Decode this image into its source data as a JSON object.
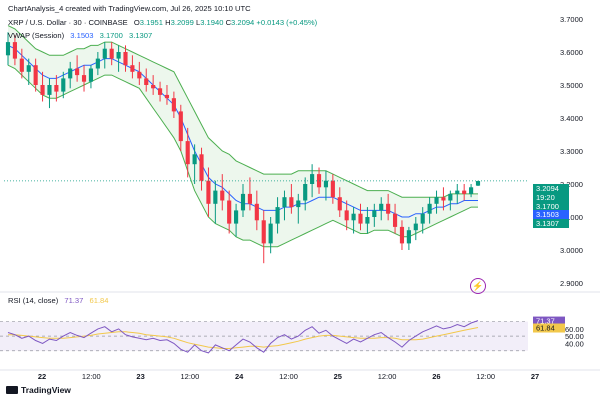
{
  "header": {
    "line0": "ChartAnalysis_4 created with TradingView.com, Jul 26, 2025 10:10 UTC",
    "symbol": "XRP / U.S. Dollar · 30 · COINBASE",
    "o_label": "O",
    "o_val": "3.1951",
    "h_label": "H",
    "h_val": "3.2099",
    "l_label": "L",
    "l_val": "3.1940",
    "c_label": "C",
    "c_val": "3.2094",
    "change": "+0.0143 (+0.45%)",
    "vwap_label": "VWAP (Session)",
    "vwap_v1": "3.1503",
    "vwap_v2": "3.1700",
    "vwap_v3": "3.1307",
    "rsi_label": "RSI (14, close)",
    "rsi_v1": "71.37",
    "rsi_v2": "61.84"
  },
  "brand": "TradingView",
  "colors": {
    "up": "#089981",
    "down": "#f23645",
    "vwap": "#2962ff",
    "band": "#4caf50",
    "rsi": "#7e57c2",
    "rsi_ma": "#f2c84b",
    "price_tag": "#089981",
    "rsi_tag": "#7e57c2"
  },
  "chart_data": {
    "type": "candlestick",
    "price_axis": {
      "ticks": [
        "3.7000",
        "3.6000",
        "3.5000",
        "3.4000",
        "3.3000",
        "3.2000",
        "3.1000",
        "3.0000",
        "2.9000"
      ],
      "range": [
        2.9,
        3.7
      ]
    },
    "time_axis": {
      "labels": [
        "22",
        "12:00",
        "23",
        "12:00",
        "24",
        "12:00",
        "25",
        "12:00",
        "26",
        "12:00",
        "27"
      ]
    },
    "price_tags": [
      {
        "value": "3.2094",
        "kind": "last"
      },
      {
        "value": "19:20",
        "kind": "countdown"
      },
      {
        "value": "3.1700",
        "kind": "vwap-upper"
      },
      {
        "value": "3.1503",
        "kind": "vwap"
      },
      {
        "value": "3.1307",
        "kind": "vwap-lower"
      }
    ],
    "rsi_axis": {
      "ticks": [
        "40.00",
        "50.00",
        "60.00"
      ],
      "levels": [
        70,
        50,
        30
      ],
      "range": [
        20,
        90
      ]
    },
    "rsi_tags": [
      {
        "value": "71.37"
      },
      {
        "value": "61.84"
      }
    ],
    "ohlc": [
      [
        3.59,
        3.66,
        3.56,
        3.63
      ],
      [
        3.63,
        3.65,
        3.56,
        3.58
      ],
      [
        3.58,
        3.61,
        3.52,
        3.54
      ],
      [
        3.54,
        3.58,
        3.5,
        3.56
      ],
      [
        3.56,
        3.58,
        3.48,
        3.5
      ],
      [
        3.5,
        3.54,
        3.45,
        3.47
      ],
      [
        3.47,
        3.52,
        3.43,
        3.5
      ],
      [
        3.5,
        3.53,
        3.45,
        3.48
      ],
      [
        3.48,
        3.54,
        3.46,
        3.52
      ],
      [
        3.52,
        3.57,
        3.49,
        3.55
      ],
      [
        3.55,
        3.59,
        3.51,
        3.53
      ],
      [
        3.53,
        3.56,
        3.48,
        3.51
      ],
      [
        3.51,
        3.56,
        3.49,
        3.55
      ],
      [
        3.55,
        3.6,
        3.53,
        3.58
      ],
      [
        3.58,
        3.63,
        3.55,
        3.61
      ],
      [
        3.61,
        3.63,
        3.56,
        3.58
      ],
      [
        3.58,
        3.62,
        3.54,
        3.6
      ],
      [
        3.6,
        3.62,
        3.54,
        3.56
      ],
      [
        3.56,
        3.59,
        3.52,
        3.54
      ],
      [
        3.54,
        3.57,
        3.5,
        3.52
      ],
      [
        3.52,
        3.55,
        3.48,
        3.5
      ],
      [
        3.5,
        3.53,
        3.47,
        3.49
      ],
      [
        3.49,
        3.51,
        3.45,
        3.47
      ],
      [
        3.47,
        3.5,
        3.44,
        3.46
      ],
      [
        3.46,
        3.48,
        3.4,
        3.42
      ],
      [
        3.42,
        3.44,
        3.3,
        3.33
      ],
      [
        3.33,
        3.37,
        3.22,
        3.26
      ],
      [
        3.26,
        3.32,
        3.2,
        3.29
      ],
      [
        3.29,
        3.31,
        3.18,
        3.21
      ],
      [
        3.21,
        3.25,
        3.1,
        3.14
      ],
      [
        3.14,
        3.21,
        3.08,
        3.18
      ],
      [
        3.18,
        3.23,
        3.12,
        3.15
      ],
      [
        3.15,
        3.18,
        3.05,
        3.08
      ],
      [
        3.08,
        3.14,
        3.04,
        3.12
      ],
      [
        3.12,
        3.2,
        3.1,
        3.17
      ],
      [
        3.17,
        3.22,
        3.12,
        3.14
      ],
      [
        3.14,
        3.18,
        3.06,
        3.09
      ],
      [
        3.09,
        3.12,
        2.96,
        3.02
      ],
      [
        3.02,
        3.1,
        2.99,
        3.08
      ],
      [
        3.08,
        3.16,
        3.05,
        3.13
      ],
      [
        3.13,
        3.18,
        3.09,
        3.16
      ],
      [
        3.16,
        3.2,
        3.11,
        3.13
      ],
      [
        3.13,
        3.17,
        3.08,
        3.15
      ],
      [
        3.15,
        3.22,
        3.12,
        3.2
      ],
      [
        3.2,
        3.26,
        3.16,
        3.23
      ],
      [
        3.23,
        3.25,
        3.17,
        3.19
      ],
      [
        3.19,
        3.24,
        3.15,
        3.21
      ],
      [
        3.21,
        3.23,
        3.14,
        3.16
      ],
      [
        3.16,
        3.19,
        3.1,
        3.12
      ],
      [
        3.12,
        3.15,
        3.06,
        3.09
      ],
      [
        3.09,
        3.13,
        3.05,
        3.11
      ],
      [
        3.11,
        3.14,
        3.06,
        3.08
      ],
      [
        3.08,
        3.13,
        3.05,
        3.1
      ],
      [
        3.1,
        3.14,
        3.07,
        3.12
      ],
      [
        3.12,
        3.16,
        3.09,
        3.14
      ],
      [
        3.14,
        3.17,
        3.09,
        3.11
      ],
      [
        3.11,
        3.14,
        3.05,
        3.07
      ],
      [
        3.07,
        3.09,
        3.0,
        3.02
      ],
      [
        3.02,
        3.07,
        3.0,
        3.06
      ],
      [
        3.06,
        3.1,
        3.03,
        3.08
      ],
      [
        3.08,
        3.13,
        3.05,
        3.11
      ],
      [
        3.11,
        3.16,
        3.08,
        3.14
      ],
      [
        3.14,
        3.18,
        3.11,
        3.16
      ],
      [
        3.16,
        3.19,
        3.12,
        3.15
      ],
      [
        3.15,
        3.18,
        3.12,
        3.17
      ],
      [
        3.17,
        3.2,
        3.14,
        3.18
      ],
      [
        3.18,
        3.2,
        3.15,
        3.17
      ],
      [
        3.17,
        3.2,
        3.16,
        3.19
      ],
      [
        3.195,
        3.21,
        3.194,
        3.209
      ]
    ],
    "vwap": [
      3.62,
      3.61,
      3.59,
      3.57,
      3.55,
      3.53,
      3.52,
      3.52,
      3.53,
      3.54,
      3.55,
      3.56,
      3.56,
      3.57,
      3.58,
      3.58,
      3.57,
      3.56,
      3.55,
      3.54,
      3.52,
      3.5,
      3.48,
      3.46,
      3.44,
      3.4,
      3.35,
      3.3,
      3.26,
      3.22,
      3.2,
      3.19,
      3.17,
      3.15,
      3.14,
      3.14,
      3.13,
      3.12,
      3.12,
      3.12,
      3.13,
      3.13,
      3.14,
      3.14,
      3.15,
      3.16,
      3.16,
      3.16,
      3.15,
      3.14,
      3.13,
      3.12,
      3.12,
      3.12,
      3.12,
      3.12,
      3.11,
      3.1,
      3.1,
      3.11,
      3.11,
      3.12,
      3.13,
      3.13,
      3.14,
      3.14,
      3.15,
      3.15,
      3.15
    ],
    "band_upper": [
      3.68,
      3.67,
      3.65,
      3.63,
      3.61,
      3.6,
      3.59,
      3.59,
      3.59,
      3.6,
      3.61,
      3.61,
      3.62,
      3.62,
      3.63,
      3.63,
      3.62,
      3.61,
      3.6,
      3.59,
      3.58,
      3.57,
      3.56,
      3.55,
      3.54,
      3.5,
      3.46,
      3.42,
      3.38,
      3.34,
      3.32,
      3.3,
      3.29,
      3.27,
      3.26,
      3.25,
      3.24,
      3.23,
      3.23,
      3.23,
      3.23,
      3.23,
      3.24,
      3.24,
      3.24,
      3.24,
      3.24,
      3.23,
      3.22,
      3.21,
      3.2,
      3.19,
      3.18,
      3.18,
      3.18,
      3.18,
      3.17,
      3.16,
      3.16,
      3.16,
      3.16,
      3.16,
      3.16,
      3.16,
      3.17,
      3.17,
      3.17,
      3.17,
      3.17
    ],
    "band_lower": [
      3.56,
      3.55,
      3.53,
      3.51,
      3.49,
      3.47,
      3.46,
      3.46,
      3.47,
      3.48,
      3.49,
      3.5,
      3.51,
      3.52,
      3.53,
      3.53,
      3.52,
      3.51,
      3.5,
      3.49,
      3.46,
      3.43,
      3.4,
      3.37,
      3.34,
      3.3,
      3.24,
      3.18,
      3.14,
      3.1,
      3.08,
      3.07,
      3.06,
      3.04,
      3.03,
      3.03,
      3.02,
      3.01,
      3.01,
      3.01,
      3.02,
      3.03,
      3.04,
      3.05,
      3.06,
      3.07,
      3.08,
      3.09,
      3.08,
      3.07,
      3.06,
      3.05,
      3.05,
      3.06,
      3.06,
      3.06,
      3.05,
      3.04,
      3.04,
      3.05,
      3.06,
      3.07,
      3.08,
      3.09,
      3.1,
      3.11,
      3.12,
      3.13,
      3.13
    ],
    "rsi": [
      55,
      52,
      47,
      50,
      44,
      40,
      46,
      44,
      50,
      55,
      51,
      48,
      54,
      60,
      63,
      56,
      60,
      52,
      49,
      47,
      45,
      47,
      44,
      45,
      40,
      32,
      28,
      38,
      30,
      27,
      38,
      34,
      30,
      38,
      46,
      42,
      34,
      28,
      40,
      48,
      52,
      46,
      50,
      58,
      63,
      54,
      58,
      50,
      45,
      40,
      46,
      42,
      47,
      52,
      55,
      48,
      42,
      35,
      44,
      50,
      56,
      60,
      64,
      60,
      62,
      66,
      63,
      68,
      71.37
    ],
    "rsi_ma": [
      52,
      52,
      51,
      50,
      49,
      48,
      47,
      47,
      47,
      48,
      49,
      50,
      51,
      53,
      54,
      55,
      56,
      56,
      55,
      54,
      52,
      51,
      50,
      49,
      47,
      44,
      41,
      39,
      37,
      35,
      34,
      33,
      33,
      34,
      35,
      36,
      36,
      35,
      36,
      37,
      39,
      41,
      43,
      46,
      48,
      50,
      51,
      51,
      50,
      49,
      48,
      47,
      47,
      47,
      48,
      48,
      47,
      45,
      45,
      45,
      46,
      48,
      50,
      52,
      54,
      56,
      58,
      60,
      61.84
    ]
  }
}
